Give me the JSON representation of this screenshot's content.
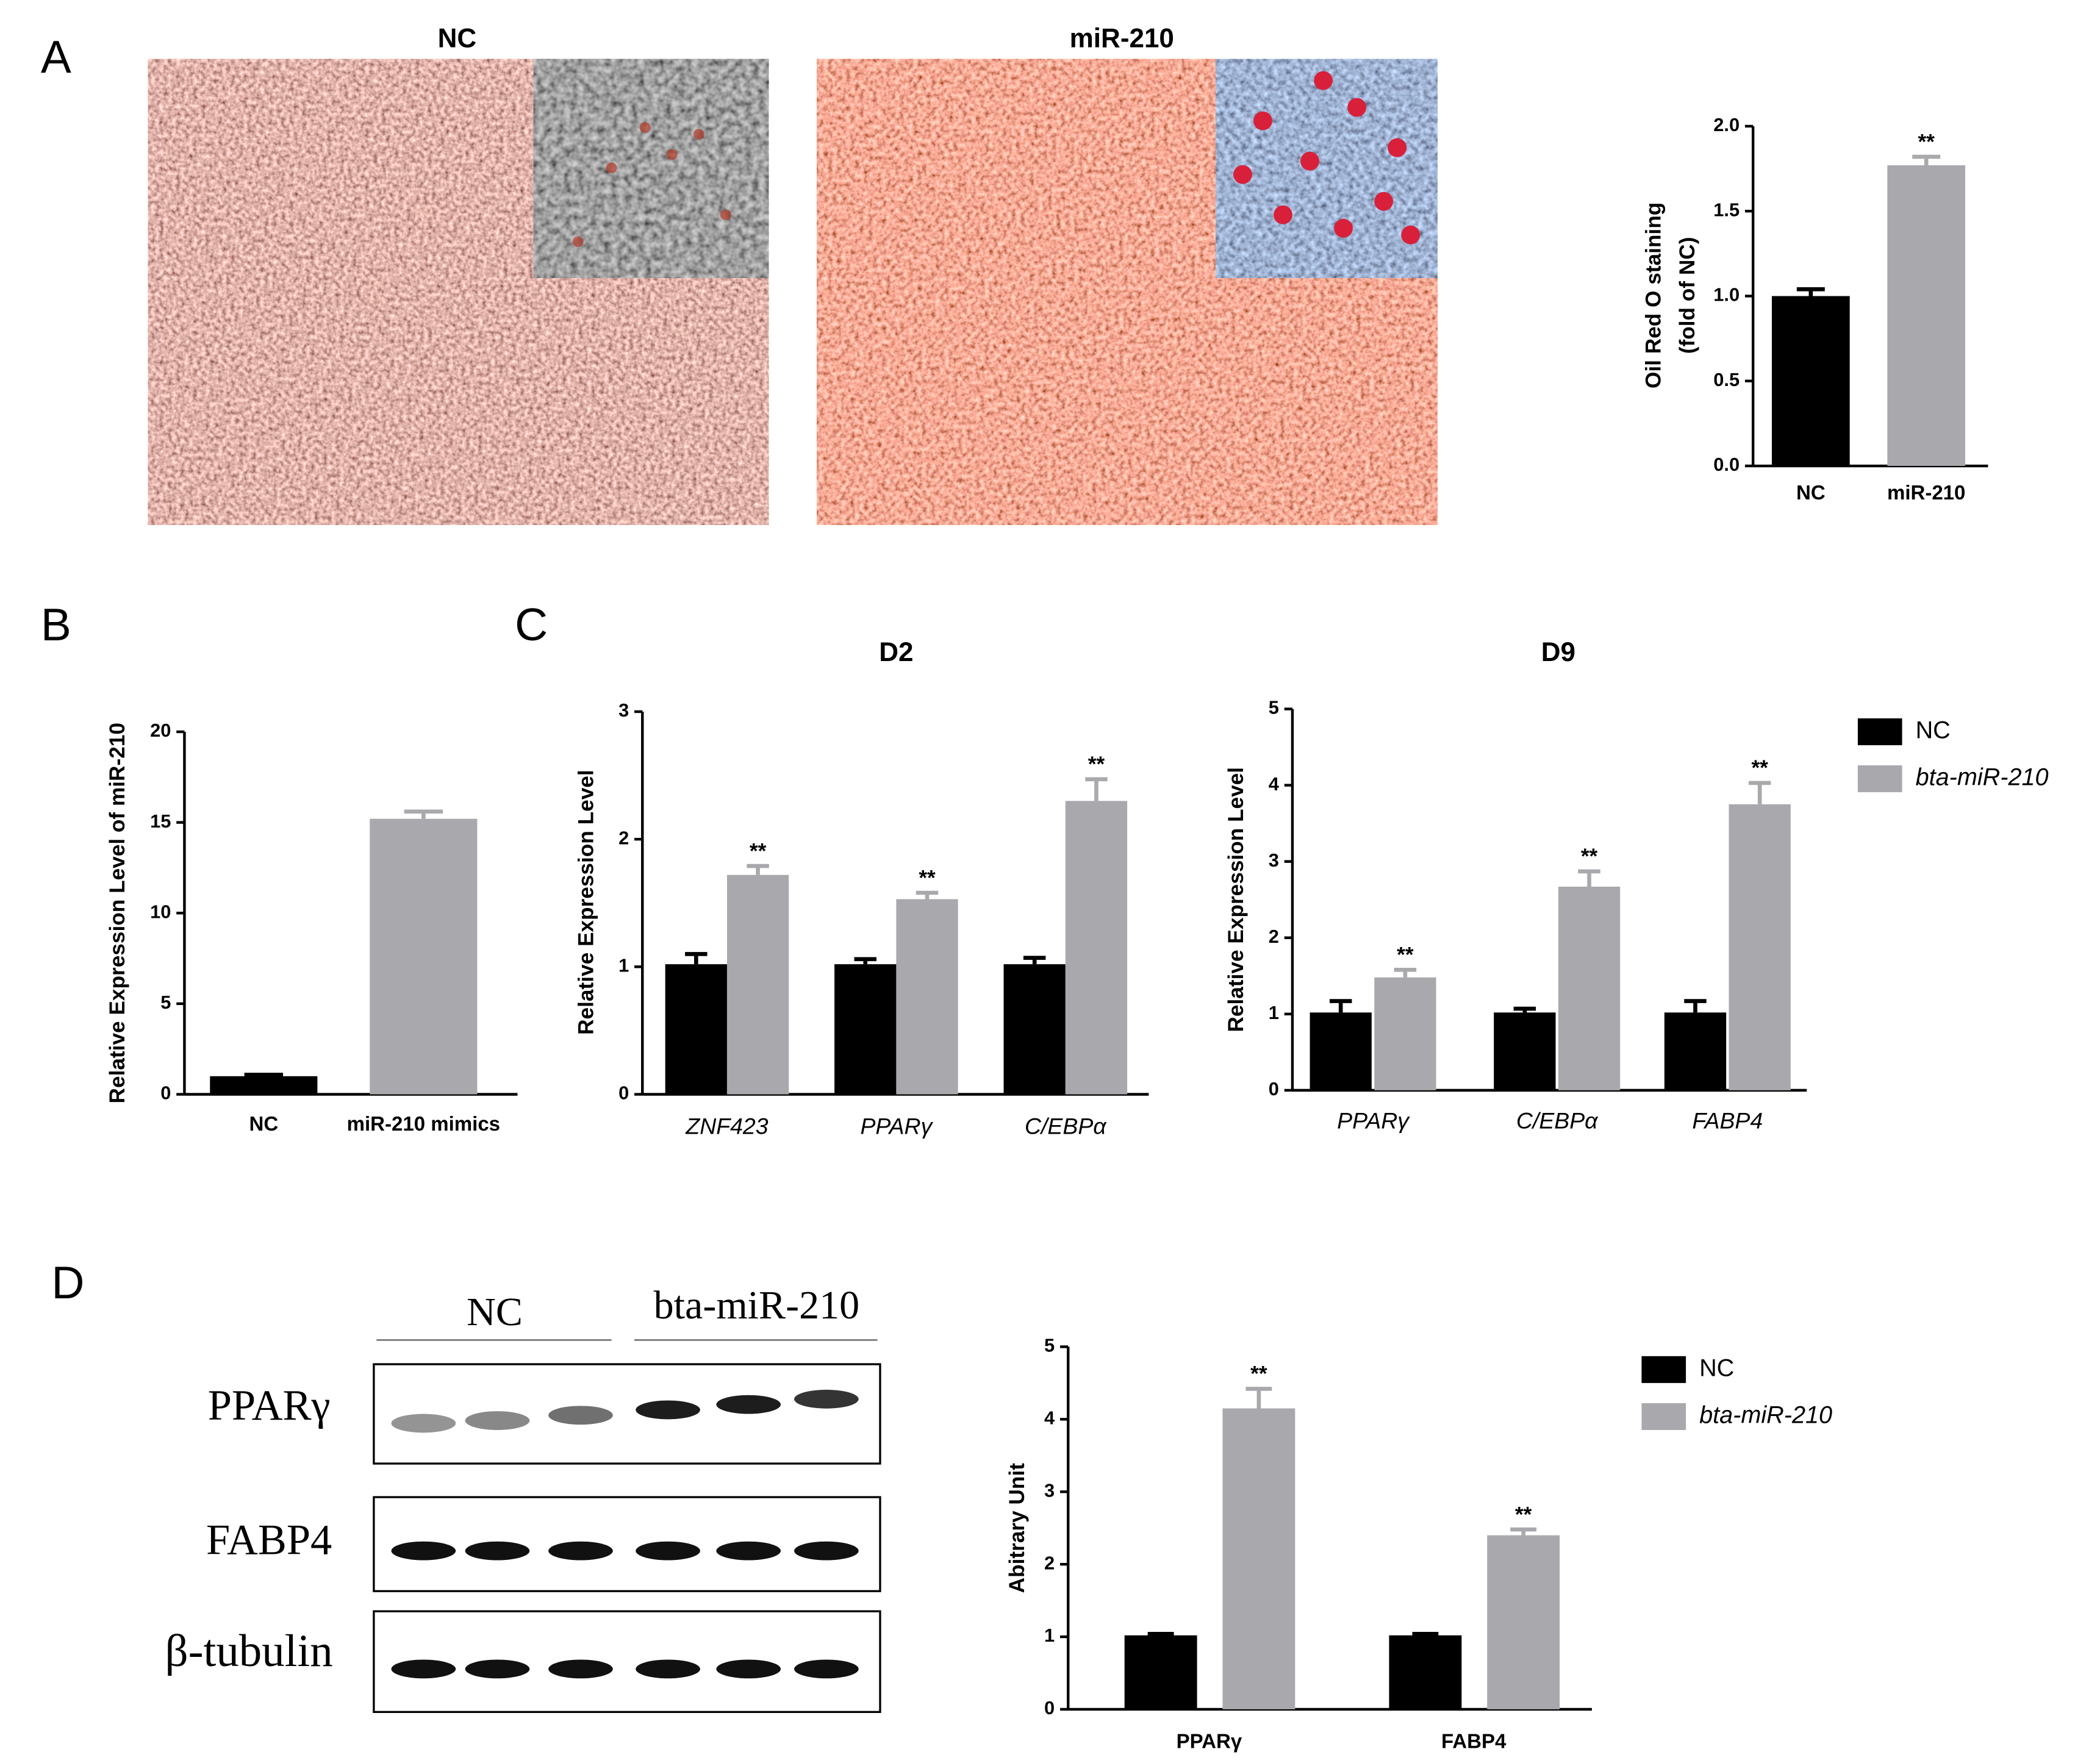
{
  "figure": {
    "panel_labels": [
      "A",
      "B",
      "C",
      "D"
    ],
    "micrographs": [
      "NC",
      "miR-210"
    ],
    "western_blot": {
      "groups": [
        "NC",
        "bta-miR-210"
      ],
      "proteins": [
        "PPARγ",
        "FABP4",
        "β-tubulin"
      ]
    }
  },
  "chart_data": [
    {
      "type": "bar",
      "ylabel": [
        "Oil Red O staining",
        "(fold of NC)"
      ],
      "categories": [
        "NC",
        "miR-210"
      ],
      "values": [
        1.0,
        1.77
      ],
      "errors": [
        0.04,
        0.05
      ],
      "colors": [
        "#000000",
        "#a9a9ad"
      ],
      "significance": [
        null,
        "**"
      ],
      "ylim": [
        0,
        2
      ],
      "yticks": [
        {
          "value": 0,
          "label": "0.0"
        },
        {
          "value": 0.5,
          "label": "0.5"
        },
        {
          "value": 1,
          "label": "1.0"
        },
        {
          "value": 1.5,
          "label": "1.5"
        },
        {
          "value": 2,
          "label": "2.0"
        }
      ]
    },
    {
      "type": "bar",
      "ylabel": "Relative Expression Level of miR-210",
      "categories": [
        "NC",
        "miR-210 mimics"
      ],
      "values": [
        1.0,
        15.2
      ],
      "errors": [
        0.08,
        0.4
      ],
      "colors": [
        "#000000",
        "#a9a9ad"
      ],
      "ylim": [
        0,
        20
      ],
      "yticks": [
        0,
        5,
        10,
        15,
        20
      ]
    },
    {
      "type": "grouped-bar",
      "title": "D2",
      "ylabel": "Relative Expression Level",
      "categories": [
        "ZNF423",
        "PPARγ",
        "C/EBPα"
      ],
      "series": [
        {
          "color": "#000000",
          "values": [
            1.02,
            1.02,
            1.02
          ],
          "errors": [
            0.08,
            0.04,
            0.05
          ]
        },
        {
          "color": "#a9a9ad",
          "values": [
            1.72,
            1.53,
            2.3
          ],
          "errors": [
            0.07,
            0.05,
            0.17
          ],
          "significance": [
            "**",
            "**",
            "**"
          ]
        }
      ],
      "ylim": [
        0,
        3
      ],
      "yticks": [
        0,
        1,
        2,
        3
      ]
    },
    {
      "type": "grouped-bar",
      "title": "D9",
      "ylabel": "Relative Expression Level",
      "categories": [
        "PPARγ",
        "C/EBPα",
        "FABP4"
      ],
      "series": [
        {
          "name": "NC",
          "color": "#000000",
          "values": [
            1.02,
            1.02,
            1.02
          ],
          "errors": [
            0.15,
            0.05,
            0.15
          ]
        },
        {
          "name": "bta-miR-210",
          "color": "#a9a9ad",
          "values": [
            1.48,
            2.67,
            3.75
          ],
          "errors": [
            0.1,
            0.2,
            0.28
          ],
          "significance": [
            "**",
            "**",
            "**"
          ]
        }
      ],
      "ylim": [
        0,
        5
      ],
      "yticks": [
        0,
        1,
        2,
        3,
        4,
        5
      ],
      "legend": "right"
    },
    {
      "type": "grouped-bar",
      "ylabel": "Abitrary Unit",
      "categories": [
        "PPARγ",
        "FABP4"
      ],
      "series": [
        {
          "name": "NC",
          "color": "#000000",
          "values": [
            1.02,
            1.02
          ],
          "errors": [
            0.02,
            0.02
          ]
        },
        {
          "name": "bta-miR-210",
          "color": "#a9a9ad",
          "values": [
            4.15,
            2.4
          ],
          "errors": [
            0.27,
            0.08
          ],
          "significance": [
            "**",
            "**"
          ]
        }
      ],
      "ylim": [
        0,
        5
      ],
      "yticks": [
        0,
        1,
        2,
        3,
        4,
        5
      ],
      "legend": "right"
    }
  ]
}
